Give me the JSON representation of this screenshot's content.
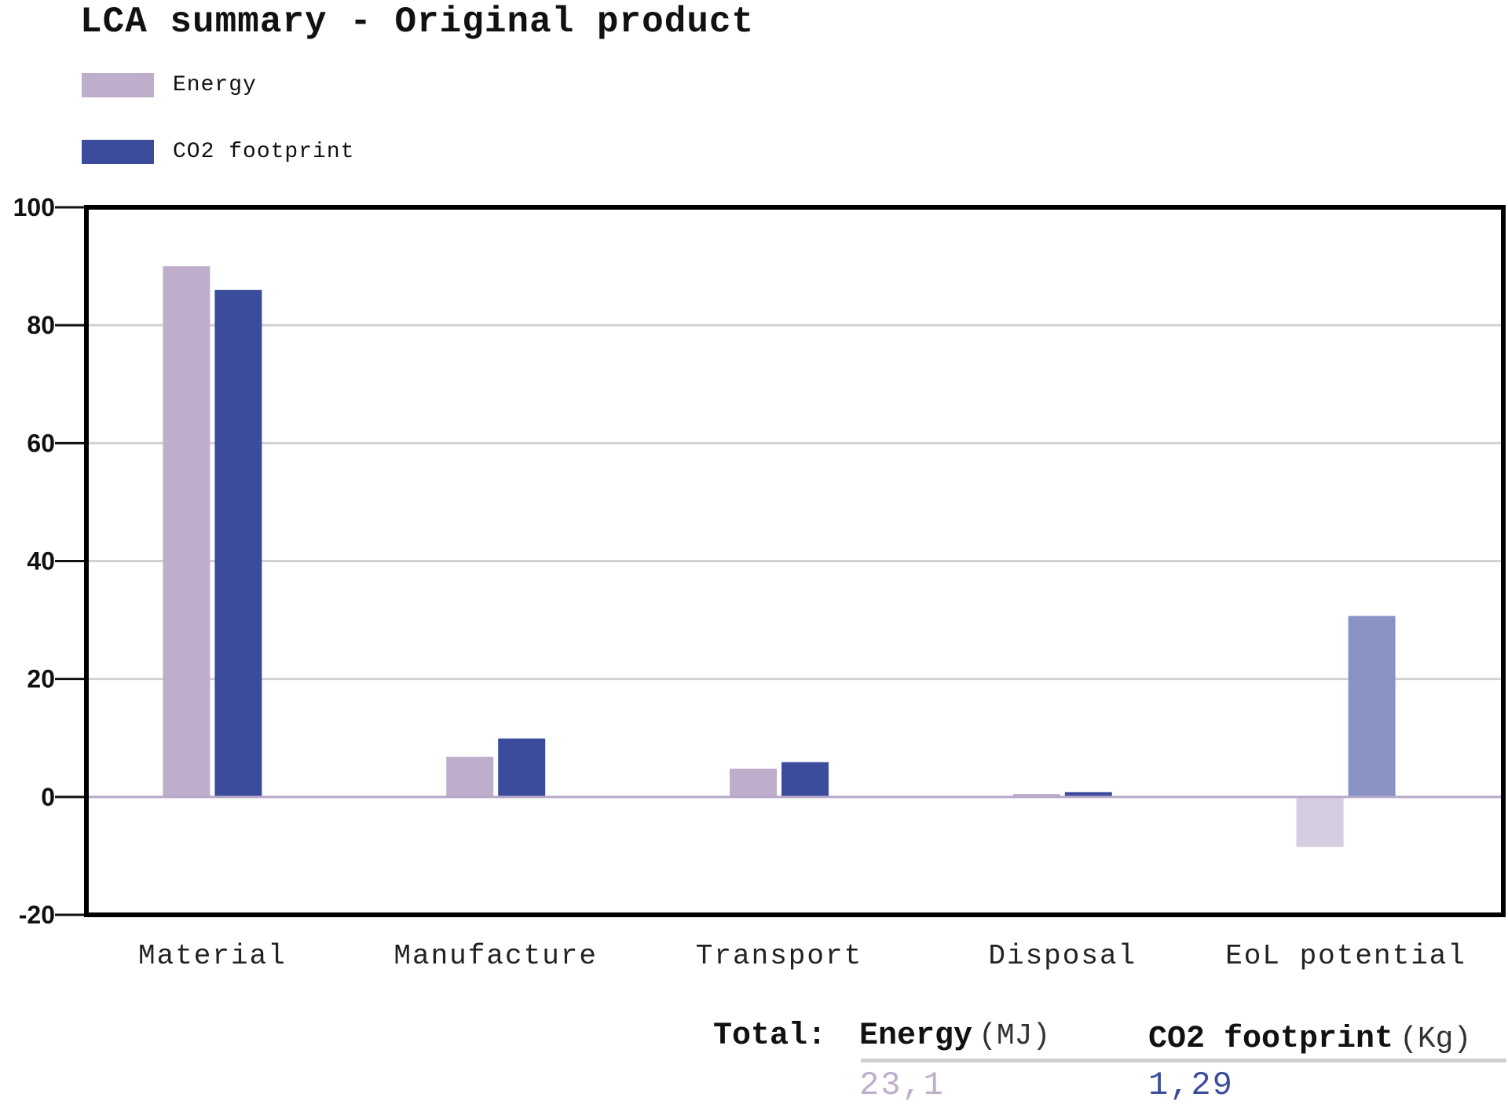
{
  "title": "LCA summary - Original product",
  "legend": [
    {
      "label": "Energy",
      "color": "#bfaecb"
    },
    {
      "label": "CO2 footprint",
      "color": "#3a4c9b"
    }
  ],
  "chart_data": {
    "type": "bar",
    "title": "LCA summary - Original product",
    "categories": [
      "Material",
      "Manufacture",
      "Transport",
      "Disposal",
      "EoL potential"
    ],
    "series": [
      {
        "name": "Energy",
        "values": [
          90,
          6.8,
          4.8,
          0.5,
          -8.5
        ],
        "color": "#bfaecb"
      },
      {
        "name": "CO2 footprint",
        "values": [
          86,
          9.9,
          5.9,
          0.8,
          30.7
        ],
        "color": "#3a4c9b"
      }
    ],
    "negative_colors": {
      "Energy": "#d7cde0",
      "CO2 footprint": "#8893c4"
    },
    "highlight_colors": {
      "EoL potential": {
        "Energy": "#d7cde0",
        "CO2 footprint": "#8893c4"
      }
    },
    "ylim": [
      -20,
      100
    ],
    "yticks": [
      "100",
      "80",
      "60",
      "40",
      "20",
      "0",
      "-20"
    ],
    "ytick_values": [
      100,
      80,
      60,
      40,
      20,
      0,
      -20
    ],
    "grid": true,
    "legend_position": "top-left"
  },
  "totals": {
    "label": "Total:",
    "energy_label": "Energy",
    "energy_unit": "(MJ)",
    "energy_value": "23,1",
    "co2_label": "CO2 footprint",
    "co2_unit": "(Kg)",
    "co2_value": "1,29",
    "energy_color": "#bfaecb",
    "co2_color": "#3a4c9b"
  }
}
